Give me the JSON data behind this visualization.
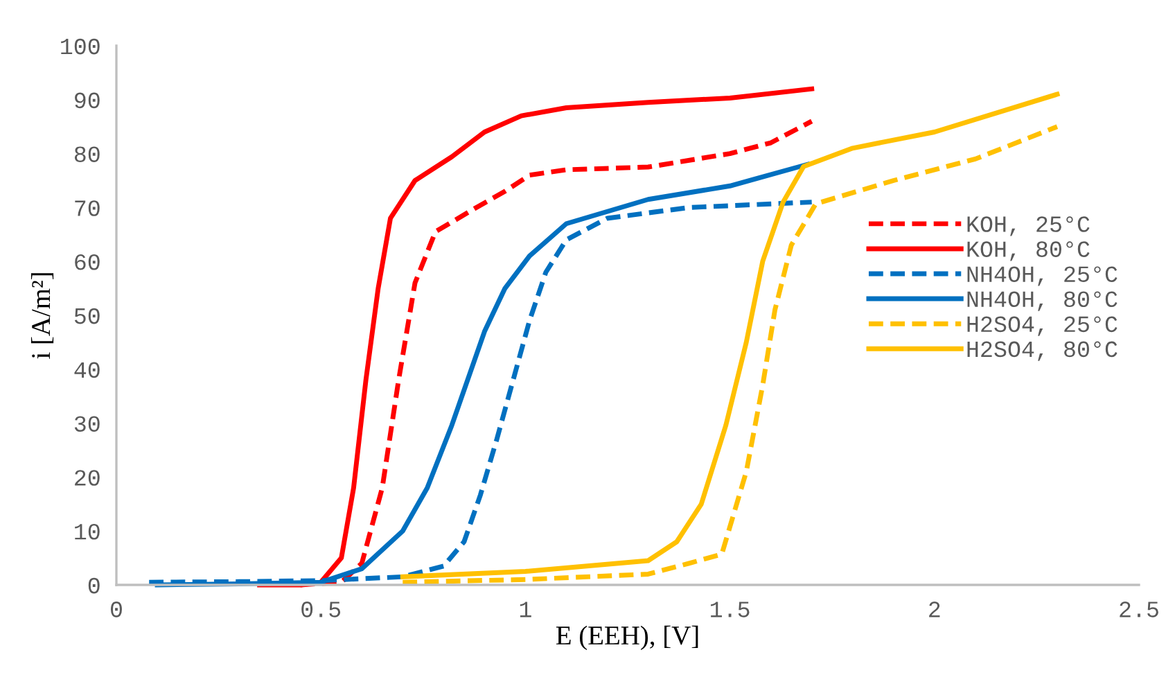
{
  "chart_data": {
    "type": "line",
    "xlabel": "E (EEH), [V]",
    "ylabel": "i [A/m²]",
    "xlim": [
      0,
      2.5
    ],
    "ylim": [
      0,
      100
    ],
    "xticks": [
      0,
      0.5,
      1,
      1.5,
      2,
      2.5
    ],
    "yticks": [
      0,
      10,
      20,
      30,
      40,
      50,
      60,
      70,
      80,
      90,
      100
    ],
    "grid": false,
    "legend": "right",
    "marker": "none",
    "series": [
      {
        "name": "KOH, 25°C",
        "color": "#ff0000",
        "line_style": "dashed",
        "x": [
          0.45,
          0.55,
          0.6,
          0.65,
          0.69,
          0.73,
          0.78,
          0.88,
          0.95,
          1.01,
          1.1,
          1.3,
          1.5,
          1.6,
          1.7
        ],
        "values": [
          0,
          0.5,
          4,
          18,
          38,
          56,
          65.5,
          70,
          73,
          76,
          77,
          77.5,
          80,
          82,
          86
        ]
      },
      {
        "name": "KOH, 80°C",
        "color": "#ff0000",
        "line_style": "solid",
        "x": [
          0.35,
          0.45,
          0.5,
          0.55,
          0.58,
          0.61,
          0.64,
          0.67,
          0.73,
          0.82,
          0.9,
          0.99,
          1.1,
          1.3,
          1.5,
          1.7
        ],
        "values": [
          0,
          0,
          0.5,
          5,
          18,
          38,
          55,
          68,
          75,
          79.4,
          84,
          87,
          88.5,
          89.5,
          90.3,
          92
        ]
      },
      {
        "name": "NH4OH, 25°C",
        "color": "#0070c0",
        "line_style": "dashed",
        "x": [
          0.08,
          0.3,
          0.5,
          0.7,
          0.8,
          0.85,
          0.89,
          0.93,
          0.97,
          1.01,
          1.05,
          1.1,
          1.2,
          1.4,
          1.7
        ],
        "values": [
          0.5,
          0.6,
          0.8,
          1.5,
          3.5,
          8,
          16.7,
          27,
          38,
          49,
          58,
          64,
          68,
          70,
          71
        ]
      },
      {
        "name": "NH4OH, 80°C",
        "color": "#0070c0",
        "line_style": "solid",
        "x": [
          0.1,
          0.3,
          0.5,
          0.6,
          0.7,
          0.76,
          0.82,
          0.9,
          0.95,
          1.01,
          1.1,
          1.3,
          1.5,
          1.69
        ],
        "values": [
          0,
          0.2,
          0.5,
          3,
          10,
          18,
          29.6,
          47,
          55,
          61,
          67,
          71.5,
          74,
          78
        ]
      },
      {
        "name": "H2SO4, 25°C",
        "color": "#ffc000",
        "line_style": "dashed",
        "x": [
          0.7,
          1.0,
          1.3,
          1.4,
          1.48,
          1.54,
          1.58,
          1.61,
          1.65,
          1.71,
          1.9,
          2.1,
          2.3
        ],
        "values": [
          0.5,
          1,
          2,
          4,
          5.7,
          21,
          37,
          51,
          63,
          70.7,
          75,
          79,
          85
        ]
      },
      {
        "name": "H2SO4, 80°C",
        "color": "#ffc000",
        "line_style": "solid",
        "x": [
          0.7,
          1.0,
          1.3,
          1.37,
          1.43,
          1.49,
          1.54,
          1.58,
          1.63,
          1.68,
          1.8,
          2.0,
          2.3
        ],
        "values": [
          1.5,
          2.5,
          4.5,
          8,
          15,
          29.6,
          45,
          60,
          71,
          77.6,
          81,
          84,
          91
        ]
      }
    ]
  }
}
